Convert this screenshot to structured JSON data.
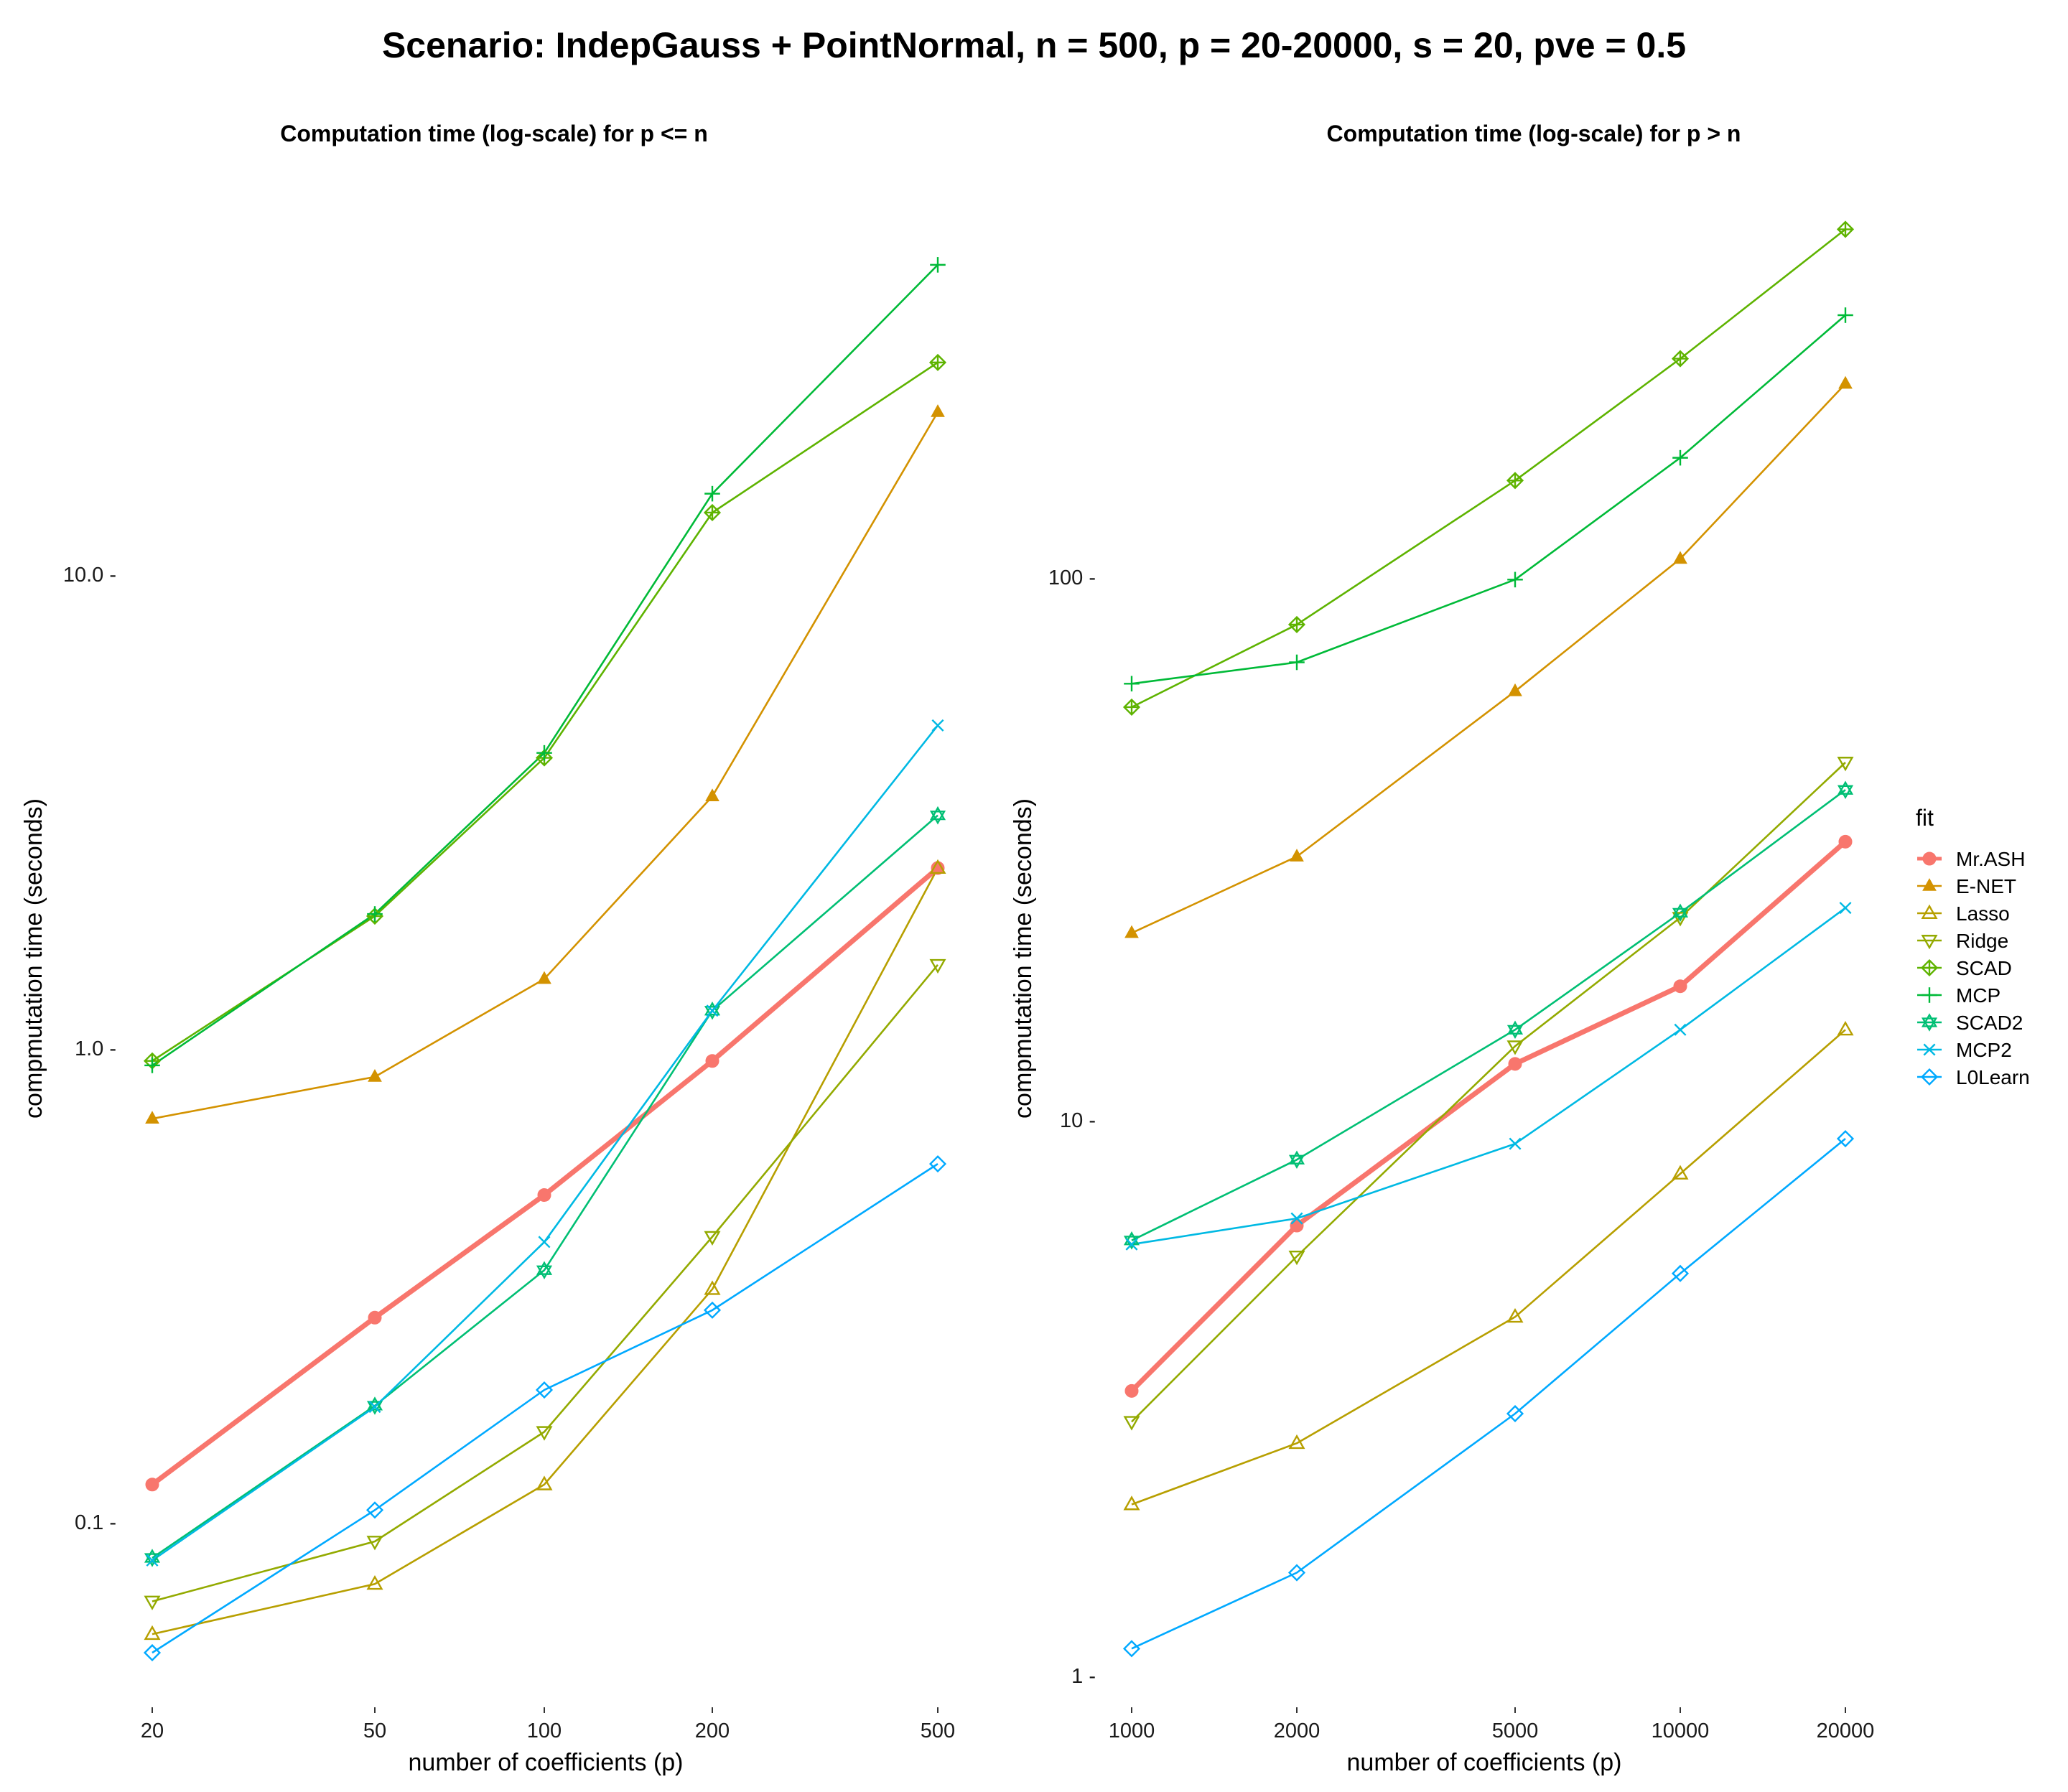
{
  "title": "Scenario: IndepGauss + PointNormal, n = 500, p = 20-20000, s = 20, pve = 0.5",
  "legend": {
    "title": "fit",
    "items": [
      {
        "name": "Mr.ASH",
        "color": "#F8766D",
        "shape": "circle-filled"
      },
      {
        "name": "E-NET",
        "color": "#D39200",
        "shape": "triangle-filled"
      },
      {
        "name": "Lasso",
        "color": "#B79F00",
        "shape": "triangle-open"
      },
      {
        "name": "Ridge",
        "color": "#93AA00",
        "shape": "triangle-down-open"
      },
      {
        "name": "SCAD",
        "color": "#5EB300",
        "shape": "diamond-plus"
      },
      {
        "name": "MCP",
        "color": "#00BA38",
        "shape": "plus"
      },
      {
        "name": "SCAD2",
        "color": "#00BF74",
        "shape": "star"
      },
      {
        "name": "MCP2",
        "color": "#00B9E3",
        "shape": "cross"
      },
      {
        "name": "L0Learn",
        "color": "#00A9FF",
        "shape": "diamond-open"
      }
    ]
  },
  "chart_data": [
    {
      "type": "line",
      "title": "Computation time (log-scale) for p <= n",
      "xlabel": "number of coefficients (p)",
      "ylabel": "compmutation time (seconds)",
      "x_scale": "log",
      "y_scale": "log",
      "x": [
        20,
        50,
        100,
        200,
        500
      ],
      "x_tick_labels": [
        "20",
        "50",
        "100",
        "200",
        "500"
      ],
      "y_ticks": [
        0.1,
        1.0,
        10.0
      ],
      "y_tick_labels": [
        "0.1 -",
        "1.0 -",
        "10.0 -"
      ],
      "ylim": [
        0.035,
        75
      ],
      "grid": false,
      "series": [
        {
          "name": "Mr.ASH",
          "values": [
            0.12,
            0.27,
            0.49,
            0.94,
            2.4
          ]
        },
        {
          "name": "E-NET",
          "values": [
            0.71,
            0.87,
            1.4,
            3.4,
            22
          ]
        },
        {
          "name": "Lasso",
          "values": [
            0.058,
            0.074,
            0.12,
            0.31,
            2.4
          ]
        },
        {
          "name": "Ridge",
          "values": [
            0.068,
            0.091,
            0.155,
            0.4,
            1.5
          ]
        },
        {
          "name": "SCAD",
          "values": [
            0.94,
            1.9,
            4.1,
            13.5,
            28
          ]
        },
        {
          "name": "MCP",
          "values": [
            0.92,
            1.92,
            4.2,
            14.8,
            45
          ]
        },
        {
          "name": "SCAD2",
          "values": [
            0.084,
            0.176,
            0.34,
            1.2,
            3.1
          ]
        },
        {
          "name": "MCP2",
          "values": [
            0.083,
            0.175,
            0.39,
            1.2,
            4.8
          ]
        },
        {
          "name": "L0Learn",
          "values": [
            0.053,
            0.106,
            0.19,
            0.28,
            0.57
          ]
        }
      ]
    },
    {
      "type": "line",
      "title": "Computation time (log-scale) for p > n",
      "xlabel": "number of coefficients (p)",
      "ylabel": "compmutation time (seconds)",
      "x_scale": "log",
      "y_scale": "log",
      "x": [
        1000,
        2000,
        5000,
        10000,
        20000
      ],
      "x_tick_labels": [
        "1000",
        "2000",
        "5000",
        "10000",
        "20000"
      ],
      "y_ticks": [
        1,
        10,
        100
      ],
      "y_tick_labels": [
        "1 -",
        "10 -",
        "100 -"
      ],
      "ylim": [
        0.75,
        700
      ],
      "grid": false,
      "series": [
        {
          "name": "Mr.ASH",
          "values": [
            3.3,
            6.6,
            13,
            18,
            33
          ]
        },
        {
          "name": "E-NET",
          "values": [
            22.5,
            31,
            62,
            108,
            225
          ]
        },
        {
          "name": "Lasso",
          "values": [
            2.05,
            2.65,
            4.5,
            8.2,
            15
          ]
        },
        {
          "name": "Ridge",
          "values": [
            2.9,
            5.8,
            14,
            24,
            46
          ]
        },
        {
          "name": "SCAD",
          "values": [
            58,
            82,
            150,
            250,
            430
          ]
        },
        {
          "name": "MCP",
          "values": [
            64,
            70,
            99,
            165,
            300
          ]
        },
        {
          "name": "SCAD2",
          "values": [
            6.2,
            8.7,
            15,
            24.5,
            41
          ]
        },
        {
          "name": "MCP2",
          "values": [
            6.1,
            6.8,
            9.3,
            15,
            25
          ]
        },
        {
          "name": "L0Learn",
          "values": [
            1.12,
            1.54,
            3.0,
            5.4,
            9.5
          ]
        }
      ]
    }
  ]
}
